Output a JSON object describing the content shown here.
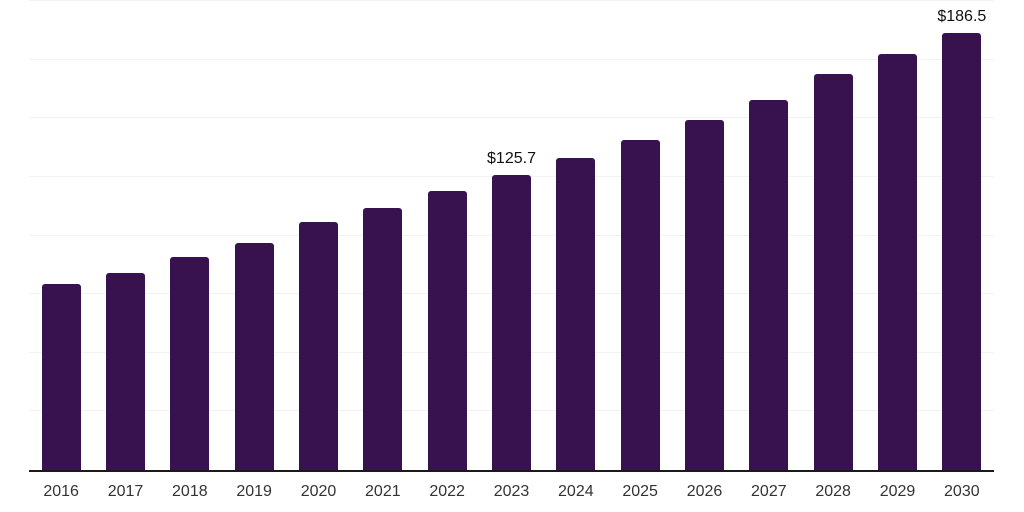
{
  "chart_data": {
    "type": "bar",
    "title": "",
    "xlabel": "",
    "ylabel": "",
    "categories": [
      "2016",
      "2017",
      "2018",
      "2019",
      "2020",
      "2021",
      "2022",
      "2023",
      "2024",
      "2025",
      "2026",
      "2027",
      "2028",
      "2029",
      "2030"
    ],
    "values": [
      79.4,
      84.2,
      90.8,
      96.7,
      105.8,
      111.9,
      118.8,
      125.7,
      132.9,
      140.9,
      149.4,
      157.9,
      168.8,
      177.3,
      186.5
    ],
    "data_labels": [
      "",
      "",
      "",
      "",
      "",
      "",
      "",
      "$125.7",
      "",
      "",
      "",
      "",
      "",
      "",
      "$186.5"
    ],
    "ylim": [
      0,
      200
    ],
    "gridline_step": 25,
    "grid": true,
    "legend": false,
    "colors": {
      "bar": "#38114F",
      "data_label": "#111111",
      "tick_label": "#333333",
      "axis_line": "#1a1a1a",
      "gridline": "#f2f2f2",
      "background": "#ffffff"
    }
  }
}
